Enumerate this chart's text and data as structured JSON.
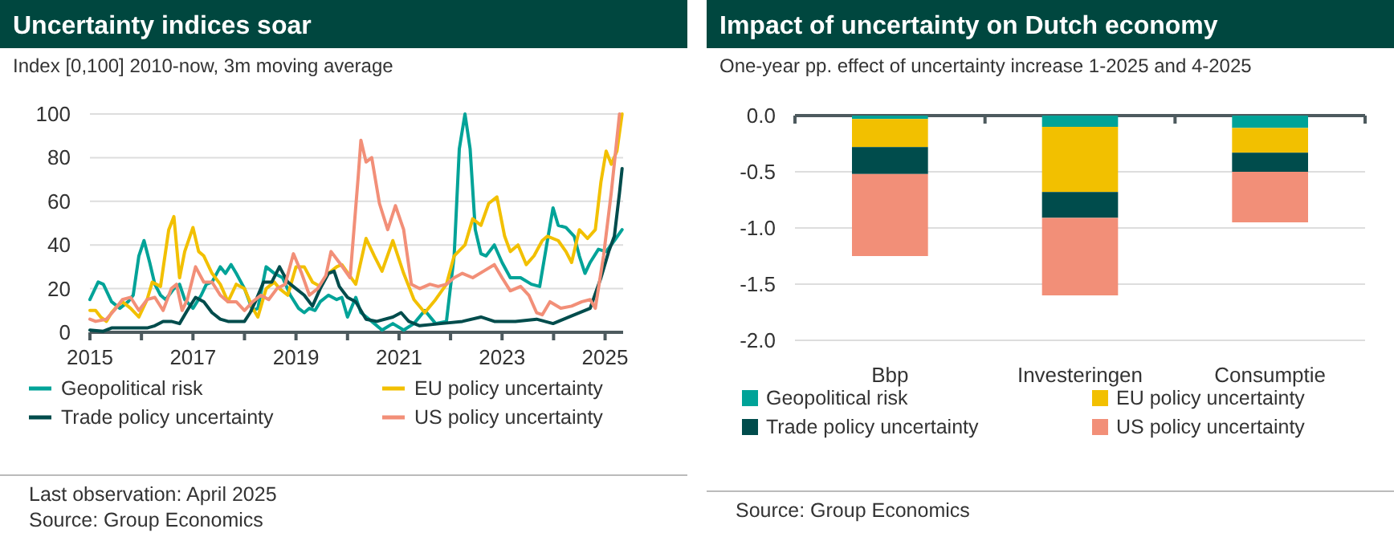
{
  "chart_data": [
    {
      "type": "line",
      "title": "Uncertainty indices soar",
      "subtitle": "Index [0,100] 2010-now, 3m moving average",
      "xlim": [
        2015,
        2025.35
      ],
      "xticks": [
        2015,
        {
          "value": 2016,
          "label": null
        },
        2017,
        {
          "value": 2018,
          "label": null
        },
        2019,
        {
          "value": 2020,
          "label": null
        },
        2021,
        {
          "value": 2022,
          "label": null
        },
        2023,
        {
          "value": 2024,
          "label": null
        },
        2025
      ],
      "ylim": [
        0,
        100
      ],
      "yticks": [
        0,
        20,
        40,
        60,
        80,
        100
      ],
      "grid": "y",
      "legend": "bottom",
      "annotations": [
        "Last observation: April 2025",
        "Source: Group Economics"
      ],
      "series": [
        {
          "name": "Geopolitical risk",
          "color": "#00a398",
          "x": [
            2015.0,
            2015.16,
            2015.26,
            2015.42,
            2015.58,
            2015.74,
            2015.84,
            2015.95,
            2016.05,
            2016.16,
            2016.26,
            2016.37,
            2016.47,
            2016.63,
            2016.74,
            2016.84,
            2017.0,
            2017.16,
            2017.26,
            2017.37,
            2017.53,
            2017.63,
            2017.74,
            2017.84,
            2018.0,
            2018.16,
            2018.26,
            2018.42,
            2018.58,
            2018.74,
            2018.89,
            2019.05,
            2019.16,
            2019.26,
            2019.37,
            2019.47,
            2019.63,
            2019.79,
            2019.89,
            2020.0,
            2020.16,
            2020.26,
            2020.47,
            2020.67,
            2020.88,
            2021.09,
            2021.29,
            2021.5,
            2021.71,
            2021.92,
            2022.07,
            2022.17,
            2022.28,
            2022.38,
            2022.48,
            2022.59,
            2022.69,
            2022.85,
            2023.0,
            2023.16,
            2023.36,
            2023.57,
            2023.73,
            2023.88,
            2023.99,
            2024.09,
            2024.24,
            2024.4,
            2024.5,
            2024.61,
            2024.71,
            2024.87,
            2025.02,
            2025.18,
            2025.33
          ],
          "values": [
            15,
            23,
            22,
            14,
            11,
            14,
            17,
            35,
            42,
            32,
            22,
            17,
            15,
            20,
            22,
            15,
            11,
            17,
            22,
            23,
            30,
            27,
            31,
            27,
            20,
            10,
            11,
            30,
            27,
            25,
            17,
            11,
            9,
            11,
            10,
            14,
            17,
            15,
            16,
            7,
            16,
            9,
            5,
            1,
            4,
            1,
            4,
            10,
            4,
            5,
            35,
            84,
            100,
            84,
            47,
            36,
            35,
            40,
            32,
            25,
            25,
            22,
            21,
            42,
            57,
            49,
            48,
            44,
            35,
            27,
            32,
            38,
            37,
            42,
            47
          ]
        },
        {
          "name": "EU policy uncertainty",
          "color": "#f2c000",
          "x": [
            2015.0,
            2015.11,
            2015.21,
            2015.32,
            2015.42,
            2015.53,
            2015.63,
            2015.79,
            2015.95,
            2016.11,
            2016.21,
            2016.37,
            2016.53,
            2016.63,
            2016.74,
            2016.84,
            2017.0,
            2017.11,
            2017.21,
            2017.37,
            2017.53,
            2017.68,
            2017.84,
            2018.0,
            2018.16,
            2018.26,
            2018.42,
            2018.58,
            2018.68,
            2018.84,
            2019.0,
            2019.16,
            2019.32,
            2019.47,
            2019.63,
            2019.79,
            2019.89,
            2020.16,
            2020.36,
            2020.52,
            2020.67,
            2020.88,
            2021.09,
            2021.29,
            2021.5,
            2021.71,
            2021.92,
            2022.07,
            2022.28,
            2022.43,
            2022.59,
            2022.74,
            2022.9,
            2023.05,
            2023.16,
            2023.31,
            2023.47,
            2023.62,
            2023.78,
            2023.88,
            2024.09,
            2024.24,
            2024.35,
            2024.5,
            2024.66,
            2024.81,
            2024.92,
            2025.02,
            2025.12,
            2025.23,
            2025.33
          ],
          "values": [
            10,
            10,
            7,
            5,
            9,
            12,
            14,
            11,
            7,
            15,
            23,
            21,
            47,
            53,
            25,
            37,
            48,
            37,
            35,
            27,
            22,
            14,
            22,
            20,
            11,
            7,
            20,
            23,
            20,
            17,
            30,
            30,
            23,
            21,
            27,
            30,
            31,
            22,
            43,
            35,
            28,
            42,
            27,
            15,
            9,
            15,
            22,
            35,
            40,
            52,
            49,
            59,
            62,
            44,
            37,
            40,
            31,
            35,
            42,
            44,
            42,
            37,
            32,
            47,
            43,
            47,
            69,
            83,
            77,
            83,
            100
          ]
        },
        {
          "name": "Trade policy uncertainty",
          "color": "#004c4c",
          "x": [
            2015.0,
            2015.26,
            2015.42,
            2015.58,
            2015.74,
            2015.89,
            2016.11,
            2016.26,
            2016.42,
            2016.58,
            2016.74,
            2016.89,
            2017.05,
            2017.21,
            2017.37,
            2017.53,
            2017.68,
            2017.84,
            2018.0,
            2018.11,
            2018.21,
            2018.37,
            2018.53,
            2018.68,
            2018.84,
            2019.0,
            2019.16,
            2019.32,
            2019.47,
            2019.63,
            2019.74,
            2019.84,
            2020.0,
            2020.16,
            2020.36,
            2020.57,
            2020.88,
            2021.04,
            2021.19,
            2021.4,
            2021.81,
            2022.23,
            2022.59,
            2022.85,
            2023.26,
            2023.67,
            2023.99,
            2024.3,
            2024.71,
            2024.92,
            2025.07,
            2025.18,
            2025.28,
            2025.33
          ],
          "values": [
            1,
            0.5,
            2,
            2,
            2,
            2,
            2,
            3,
            5,
            5,
            4,
            10,
            16,
            14,
            9,
            6,
            5,
            5,
            5,
            9,
            14,
            23,
            23,
            30,
            23,
            20,
            17,
            12,
            20,
            27,
            28,
            21,
            16,
            14,
            6,
            5,
            7,
            9,
            5,
            3,
            4,
            5,
            7,
            5,
            5,
            6,
            4,
            7,
            11,
            25,
            37,
            44,
            64,
            75
          ]
        },
        {
          "name": "US policy uncertainty",
          "color": "#f28f78",
          "x": [
            2015.0,
            2015.11,
            2015.32,
            2015.47,
            2015.63,
            2015.79,
            2015.95,
            2016.11,
            2016.26,
            2016.42,
            2016.58,
            2016.68,
            2016.79,
            2016.89,
            2017.05,
            2017.21,
            2017.37,
            2017.53,
            2017.68,
            2017.84,
            2018.0,
            2018.16,
            2018.32,
            2018.47,
            2018.63,
            2018.79,
            2018.95,
            2019.11,
            2019.26,
            2019.42,
            2019.58,
            2019.68,
            2019.84,
            2020.05,
            2020.21,
            2020.26,
            2020.36,
            2020.47,
            2020.62,
            2020.78,
            2020.93,
            2021.09,
            2021.24,
            2021.4,
            2021.6,
            2021.76,
            2021.92,
            2022.07,
            2022.23,
            2022.43,
            2022.64,
            2022.85,
            2023.0,
            2023.16,
            2023.36,
            2023.52,
            2023.67,
            2023.78,
            2023.93,
            2024.14,
            2024.35,
            2024.55,
            2024.71,
            2024.81,
            2024.97,
            2025.12,
            2025.28
          ],
          "values": [
            6,
            5,
            6,
            10,
            15,
            16,
            10,
            15,
            16,
            10,
            20,
            22,
            10,
            15,
            30,
            23,
            23,
            17,
            14,
            14,
            10,
            14,
            17,
            15,
            20,
            22,
            36,
            27,
            17,
            20,
            26,
            37,
            32,
            25,
            72,
            88,
            78,
            80,
            59,
            47,
            58,
            47,
            22,
            20,
            22,
            21,
            22,
            25,
            27,
            25,
            28,
            31,
            25,
            19,
            21,
            17,
            9,
            8,
            14,
            11,
            12,
            14,
            15,
            11,
            35,
            64,
            100
          ]
        }
      ]
    },
    {
      "type": "bar",
      "title": "Impact of uncertainty on Dutch economy",
      "subtitle": "One-year pp. effect of uncertainty increase 1-2025 and 4-2025",
      "stacked": true,
      "categories": [
        "Bbp",
        "Investeringen",
        "Consumptie"
      ],
      "ylim": [
        -2,
        0
      ],
      "yticks": [
        {
          "value": 0,
          "label": "0.0"
        },
        {
          "value": -0.5,
          "label": "-0.5"
        },
        {
          "value": -1,
          "label": "-1.0"
        },
        {
          "value": -1.5,
          "label": "-1.5"
        },
        {
          "value": -2,
          "label": "-2.0"
        }
      ],
      "grid": "y",
      "legend": "bottom",
      "annotations": [
        "Source: Group Economics"
      ],
      "series": [
        {
          "name": "Geopolitical risk",
          "color": "#00a398",
          "values": [
            -0.03,
            -0.1,
            -0.11
          ]
        },
        {
          "name": "EU policy uncertainty",
          "color": "#f2c000",
          "values": [
            -0.25,
            -0.58,
            -0.22
          ]
        },
        {
          "name": "Trade policy uncertainty",
          "color": "#004c4c",
          "values": [
            -0.24,
            -0.23,
            -0.17
          ]
        },
        {
          "name": "US policy uncertainty",
          "color": "#f28f78",
          "values": [
            -0.73,
            -0.69,
            -0.45
          ]
        }
      ]
    }
  ]
}
